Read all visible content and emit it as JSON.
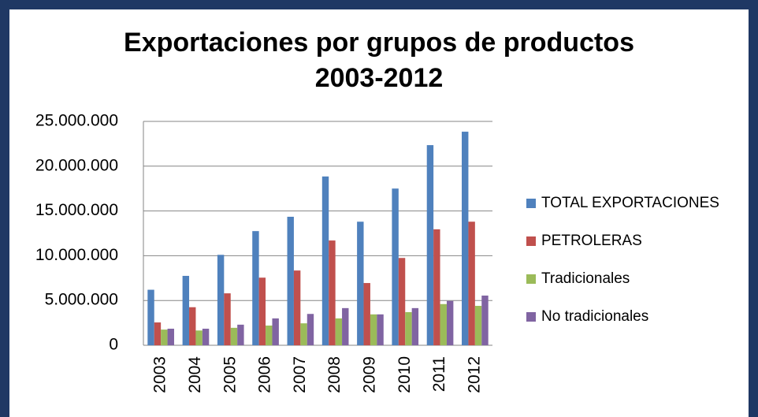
{
  "chart_data": {
    "type": "bar",
    "title": "Exportaciones por grupos de productos",
    "subtitle": "2003-2012",
    "categories": [
      "2003",
      "2004",
      "2005",
      "2006",
      "2007",
      "2008",
      "2009",
      "2010",
      "2011",
      "2012"
    ],
    "series": [
      {
        "name": "TOTAL EXPORTACIONES",
        "color": "#4f81bd",
        "values": [
          6200000,
          7750000,
          10100000,
          12750000,
          14350000,
          18850000,
          13800000,
          17500000,
          22350000,
          23850000
        ]
      },
      {
        "name": "PETROLERAS",
        "color": "#c0504d",
        "values": [
          2550000,
          4250000,
          5800000,
          7550000,
          8350000,
          11700000,
          6950000,
          9750000,
          12950000,
          13800000
        ]
      },
      {
        "name": "Tradicionales",
        "color": "#9bbb59",
        "values": [
          1750000,
          1650000,
          1950000,
          2200000,
          2450000,
          3000000,
          3450000,
          3700000,
          4600000,
          4400000
        ]
      },
      {
        "name": "No tradicionales",
        "color": "#8064a2",
        "values": [
          1850000,
          1850000,
          2300000,
          3000000,
          3500000,
          4150000,
          3450000,
          4150000,
          4950000,
          5550000
        ]
      }
    ],
    "ylim": [
      0,
      25000000
    ],
    "yticks": [
      0,
      {
        "value": 5000000,
        "label": "5.000.000"
      },
      {
        "value": 10000000,
        "label": "10.000.000"
      },
      {
        "value": 15000000,
        "label": "15.000.000"
      },
      {
        "value": 20000000,
        "label": "20.000.000"
      },
      {
        "value": 25000000,
        "label": "25.000.000"
      }
    ],
    "grid": true,
    "legend": "right"
  }
}
